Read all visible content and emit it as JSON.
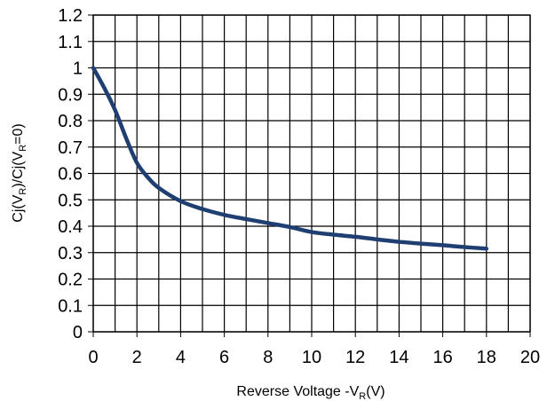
{
  "chart_data": {
    "type": "line",
    "xlabel": {
      "prefix": "Reverse Voltage   -V",
      "sub": "R",
      "suffix": "(V)"
    },
    "ylabel": {
      "p1": "Cj(V",
      "s1": "R",
      "p2": ")/Cj(V",
      "s2": "R",
      "p3": "=0)"
    },
    "xlim": [
      0,
      20
    ],
    "ylim": [
      0,
      1.2
    ],
    "x_ticks": [
      "0",
      "2",
      "4",
      "6",
      "8",
      "10",
      "12",
      "14",
      "16",
      "18",
      "20"
    ],
    "y_ticks": [
      "0",
      "0.1",
      "0.2",
      "0.3",
      "0.4",
      "0.5",
      "0.6",
      "0.7",
      "0.8",
      "0.9",
      "1",
      "1.1",
      "1.2"
    ],
    "grid": true,
    "series": [
      {
        "color": "#1f3f73",
        "x": [
          0,
          0.5,
          1,
          1.5,
          2,
          2.5,
          3,
          4,
          5,
          6,
          7,
          8,
          9,
          10,
          11,
          12,
          13,
          14,
          15,
          16,
          17,
          18
        ],
        "y": [
          1.0,
          0.925,
          0.84,
          0.735,
          0.64,
          0.585,
          0.545,
          0.495,
          0.465,
          0.443,
          0.427,
          0.412,
          0.397,
          0.378,
          0.368,
          0.36,
          0.35,
          0.341,
          0.334,
          0.328,
          0.321,
          0.315
        ]
      }
    ]
  }
}
